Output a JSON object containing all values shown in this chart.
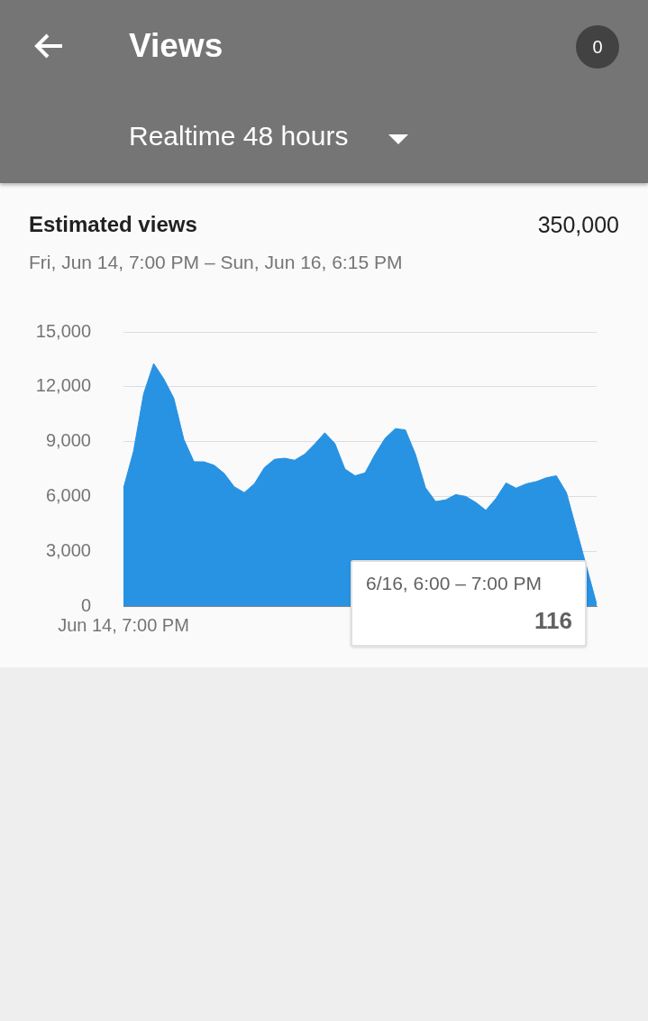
{
  "chart_data": {
    "type": "area",
    "title": "Estimated views",
    "subtitle": "Fri, Jun 14, 7:00 PM – Sun, Jun 16, 6:15 PM",
    "annotations": [
      "Views",
      "Realtime 48 hours",
      "0",
      "350,000",
      "6/16, 6:00 – 7:00 PM"
    ],
    "categories": [
      "Jun 14, 7:00 PM",
      null,
      null,
      null,
      null,
      null,
      null,
      null,
      null,
      null,
      null,
      null,
      null,
      null,
      null,
      null,
      null,
      null,
      null,
      null,
      null,
      null,
      null,
      null,
      null,
      null,
      null,
      null,
      null,
      null,
      null,
      null,
      null,
      null,
      null,
      null,
      null,
      null,
      null,
      null,
      null,
      null,
      null,
      null,
      null,
      null,
      null,
      null
    ],
    "series": [
      {
        "color": "#2892e3",
        "values": [
          6450,
          8470,
          11610,
          13270,
          12430,
          11370,
          9110,
          7900,
          7890,
          7710,
          7260,
          6530,
          6210,
          6690,
          7580,
          8030,
          8090,
          7980,
          8310,
          8870,
          9480,
          8900,
          7500,
          7130,
          7290,
          8310,
          9190,
          9710,
          9640,
          8310,
          6480,
          5720,
          5810,
          6100,
          6000,
          5670,
          5240,
          5890,
          6740,
          6450,
          6690,
          6810,
          7020,
          7130,
          6210,
          null,
          null,
          116
        ],
        "value_labels": [
          null,
          null,
          null,
          null,
          null,
          null,
          null,
          null,
          null,
          null,
          null,
          null,
          null,
          null,
          null,
          null,
          null,
          null,
          null,
          null,
          null,
          null,
          null,
          null,
          null,
          null,
          null,
          null,
          null,
          null,
          null,
          null,
          null,
          null,
          null,
          null,
          null,
          null,
          null,
          null,
          null,
          null,
          null,
          null,
          null,
          null,
          null,
          "116"
        ]
      }
    ],
    "ylim": [
      0,
      15000
    ],
    "yticks": [
      0,
      {
        "value": 3000,
        "label": "3,000"
      },
      {
        "value": 6000,
        "label": "6,000"
      },
      {
        "value": 9000,
        "label": "9,000"
      },
      {
        "value": 12000,
        "label": "12,000"
      },
      {
        "value": 15000,
        "label": "15,000"
      }
    ],
    "grid": "y",
    "legend": false
  }
}
